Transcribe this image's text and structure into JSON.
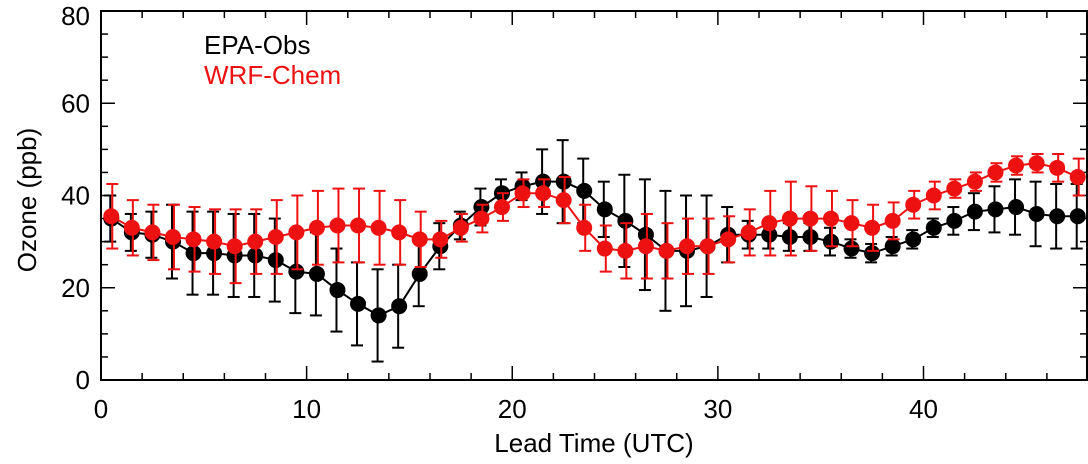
{
  "chart_data": {
    "type": "line",
    "xlabel": "Lead Time (UTC)",
    "ylabel": "Ozone (ppb)",
    "xlim": [
      0,
      48
    ],
    "ylim": [
      0,
      80
    ],
    "x_ticks": [
      "0",
      "10",
      "20",
      "30",
      "40"
    ],
    "y_ticks": [
      "0",
      "20",
      "40",
      "60",
      "80"
    ],
    "legend_placement": "top-left",
    "grid": false,
    "x": [
      0.5,
      1.5,
      2.5,
      3.5,
      4.5,
      5.5,
      6.5,
      7.5,
      8.5,
      9.5,
      10.5,
      11.5,
      12.5,
      13.5,
      14.5,
      15.5,
      16.5,
      17.5,
      18.5,
      19.5,
      20.5,
      21.5,
      22.5,
      23.5,
      24.5,
      25.5,
      26.5,
      27.5,
      28.5,
      29.5,
      30.5,
      31.5,
      32.5,
      33.5,
      34.5,
      35.5,
      36.5,
      37.5,
      38.5,
      39.5,
      40.5,
      41.5,
      42.5,
      43.5,
      44.5,
      45.5,
      46.5,
      47.5
    ],
    "series": [
      {
        "name": "EPA-Obs",
        "color": "#000000",
        "values": [
          35,
          32,
          31.5,
          30,
          27.5,
          27.5,
          27,
          27,
          26,
          23.5,
          23,
          19.5,
          16.5,
          14,
          16,
          23,
          29,
          33.5,
          37.5,
          40.5,
          42,
          43,
          43,
          41,
          37,
          34.5,
          31.5,
          28,
          28,
          29,
          31.5,
          31.5,
          31.5,
          31,
          31,
          30,
          28.5,
          27.5,
          29,
          30.5,
          33,
          34.5,
          36.5,
          37,
          37.5,
          36,
          35.5,
          35.5
        ],
        "err": [
          5,
          4,
          5,
          8,
          9,
          9,
          9,
          9,
          9,
          9,
          9,
          9,
          9,
          10,
          9,
          7,
          5,
          3,
          4,
          3,
          3,
          7,
          9,
          7,
          6,
          10,
          12,
          13,
          12,
          11,
          6,
          3,
          3,
          3,
          3,
          3,
          2,
          2,
          2,
          2,
          2,
          3,
          4,
          5,
          6,
          7,
          7,
          7
        ]
      },
      {
        "name": "WRF-Chem",
        "color": "#ee1111",
        "values": [
          35.5,
          33,
          32,
          31,
          30.5,
          30,
          29,
          30,
          31,
          32,
          33,
          33.5,
          33.5,
          33,
          32,
          30.5,
          30.5,
          33,
          35,
          37.5,
          40.5,
          40.5,
          39,
          33,
          28.5,
          28,
          29,
          28,
          29,
          29,
          30.5,
          32,
          34,
          35,
          35,
          35,
          34,
          33,
          34.5,
          38,
          40,
          41.5,
          43,
          45,
          46.5,
          47,
          46,
          44
        ],
        "err": [
          7,
          6,
          6,
          7,
          7,
          7,
          8,
          7,
          8,
          8,
          8,
          8,
          8,
          8,
          7,
          6,
          4,
          3,
          3,
          3,
          3,
          3,
          5,
          5,
          5,
          6,
          7,
          6,
          6,
          6,
          5,
          5,
          7,
          8,
          7,
          6,
          5,
          5,
          4,
          3,
          3,
          2,
          2,
          2,
          2,
          2,
          3,
          4
        ]
      }
    ]
  }
}
